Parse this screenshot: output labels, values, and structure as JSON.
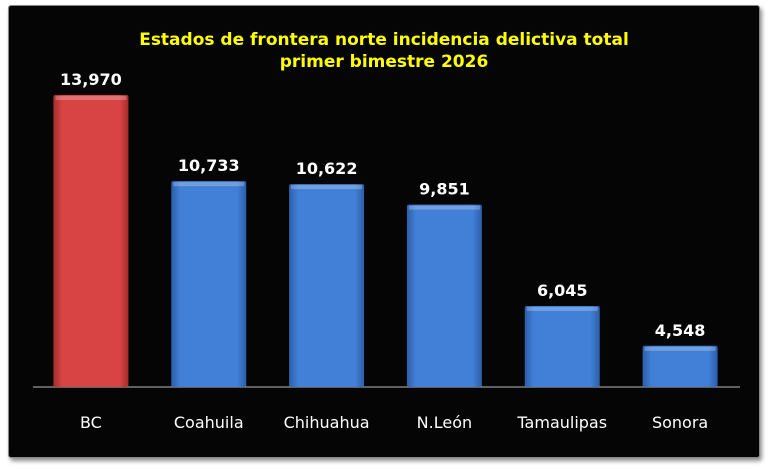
{
  "chart_data": {
    "type": "bar",
    "title": [
      "Estados de frontera norte incidencia delictiva total",
      "primer bimestre 2026"
    ],
    "categories": [
      "BC",
      "Coahuila",
      "Chihuahua",
      "N.León",
      "Tamaulipas",
      "Sonora"
    ],
    "values": [
      13970,
      10733,
      10622,
      9851,
      6045,
      4548
    ],
    "data_labels": [
      "13,970",
      "10,733",
      "10,622",
      "9,851",
      "6,045",
      "4,548"
    ],
    "colors": [
      "#d23f3f",
      "#3e78cc",
      "#3e78cc",
      "#3e78cc",
      "#3e78cc",
      "#3e78cc"
    ],
    "xlabel": "",
    "ylabel": "",
    "ylim": [
      3000,
      16000
    ],
    "grid": false,
    "legend": "none",
    "background": "#050505",
    "title_color": "#ffff00"
  }
}
